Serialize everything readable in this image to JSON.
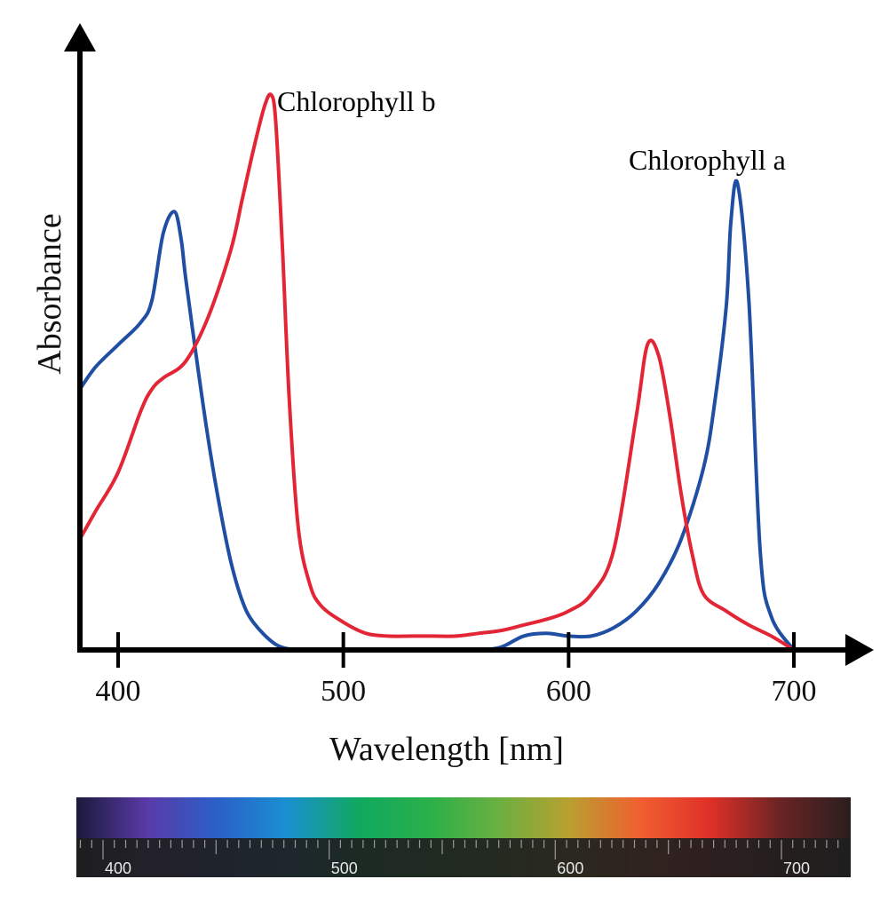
{
  "chart_data": {
    "type": "line",
    "xlabel": "Wavelength [nm]",
    "ylabel": "Absorbance",
    "xlim": [
      380,
      730
    ],
    "ylim": [
      0,
      1.0
    ],
    "x_ticks": [
      400,
      500,
      600,
      700
    ],
    "x_tick_labels": [
      "400",
      "500",
      "600",
      "700"
    ],
    "grid": false,
    "series": [
      {
        "name": "Chlorophyll a",
        "color": "#1f4ea3",
        "x": [
          380,
          390,
          400,
          410,
          415,
          420,
          425,
          428,
          430,
          435,
          440,
          445,
          450,
          455,
          460,
          470,
          480,
          490,
          500,
          510,
          520,
          530,
          540,
          550,
          560,
          570,
          580,
          590,
          600,
          610,
          620,
          630,
          640,
          650,
          660,
          665,
          670,
          672,
          675,
          680,
          685,
          690,
          700
        ],
        "values": [
          0.47,
          0.51,
          0.55,
          0.59,
          0.63,
          0.75,
          0.79,
          0.74,
          0.67,
          0.52,
          0.38,
          0.26,
          0.16,
          0.09,
          0.05,
          0.01,
          0.0,
          0.0,
          0.0,
          0.0,
          0.0,
          0.0,
          0.0,
          0.0,
          0.0,
          0.005,
          0.025,
          0.03,
          0.025,
          0.025,
          0.04,
          0.07,
          0.12,
          0.2,
          0.33,
          0.45,
          0.62,
          0.77,
          0.84,
          0.63,
          0.18,
          0.06,
          0.0
        ]
      },
      {
        "name": "Chlorophyll b",
        "color": "#e32636",
        "x": [
          380,
          390,
          400,
          410,
          415,
          420,
          430,
          440,
          450,
          455,
          460,
          465,
          468,
          470,
          473,
          476,
          480,
          485,
          490,
          500,
          510,
          520,
          530,
          540,
          550,
          560,
          570,
          580,
          590,
          600,
          610,
          620,
          630,
          635,
          640,
          645,
          650,
          655,
          660,
          670,
          680,
          690,
          700
        ],
        "values": [
          0.2,
          0.25,
          0.32,
          0.43,
          0.47,
          0.49,
          0.52,
          0.6,
          0.72,
          0.81,
          0.9,
          0.98,
          1.0,
          0.95,
          0.72,
          0.45,
          0.22,
          0.12,
          0.08,
          0.05,
          0.03,
          0.025,
          0.025,
          0.025,
          0.025,
          0.03,
          0.035,
          0.045,
          0.055,
          0.07,
          0.1,
          0.18,
          0.42,
          0.55,
          0.53,
          0.42,
          0.28,
          0.17,
          0.1,
          0.07,
          0.045,
          0.025,
          0.0
        ]
      }
    ],
    "annotations": [
      {
        "text": "Chlorophyll b",
        "color": "#e32636"
      },
      {
        "text": "Chlorophyll a",
        "color": "#1f4ea3"
      }
    ]
  },
  "spectrum_bar": {
    "labels": [
      "400",
      "500",
      "600",
      "700"
    ],
    "label_values": [
      400,
      500,
      600,
      700
    ],
    "range_nm": [
      380,
      730
    ],
    "colors": [
      "#1a1a3a",
      "#5a3aa8",
      "#2a60c8",
      "#1a90d0",
      "#10a860",
      "#2ab04a",
      "#6ab040",
      "#b8a030",
      "#f06030",
      "#e03028",
      "#6a2424",
      "#2a1e1e"
    ]
  }
}
